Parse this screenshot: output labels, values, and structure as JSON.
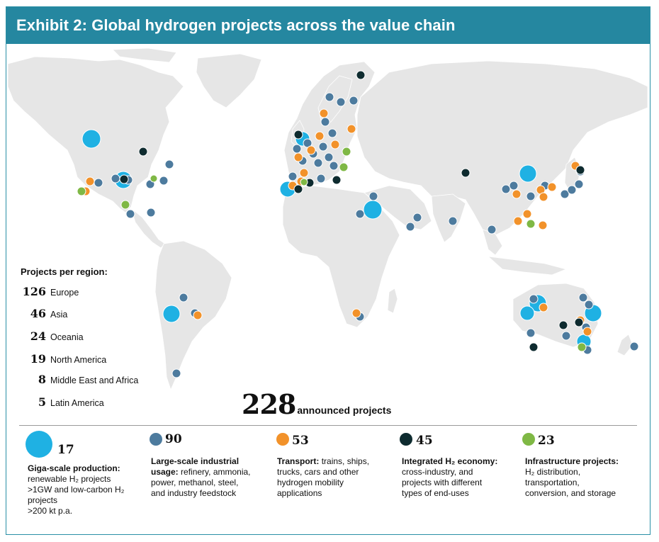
{
  "title": "Exhibit 2: Global hydrogen projects across the value chain",
  "region_panel": {
    "heading": "Projects per region:",
    "regions": [
      {
        "count": "126",
        "name": "Europe"
      },
      {
        "count": "46",
        "name": "Asia"
      },
      {
        "count": "24",
        "name": "Oceania"
      },
      {
        "count": "19",
        "name": "North America"
      },
      {
        "count": "8",
        "name": "Middle East and Africa"
      },
      {
        "count": "5",
        "name": "Latin America"
      }
    ]
  },
  "total": {
    "number": "228",
    "label": "announced projects"
  },
  "colors": {
    "header": "#2587a0",
    "giga": "#1fb1e3",
    "industrial": "#4d7b9e",
    "transport": "#f2922a",
    "integrated": "#0e2b2f",
    "infrastructure": "#7fb845",
    "land": "#e6e6e6",
    "border": "#ffffff"
  },
  "legend": [
    {
      "key": "giga",
      "count": "17",
      "title": "Giga-scale production:",
      "lines": [
        "renewable H₂ projects",
        ">1GW and low-carbon H₂",
        "projects",
        ">200 kt p.a."
      ]
    },
    {
      "key": "industrial",
      "count": "90",
      "title": "Large-scale industrial",
      "title2": "usage:",
      "lines": [
        "refinery, ammonia,",
        "power, methanol, steel,",
        "and industry feedstock"
      ],
      "first_suffix": " refinery, ammonia,"
    },
    {
      "key": "transport",
      "count": "53",
      "title": "Transport:",
      "lines": [
        "trains, ships,",
        "trucks, cars and other",
        "hydrogen mobility",
        "applications"
      ]
    },
    {
      "key": "integrated",
      "count": "45",
      "title": "Integrated H₂ economy:",
      "lines": [
        "cross-industry, and",
        "projects with different",
        "types of end-uses"
      ]
    },
    {
      "key": "infrastructure",
      "count": "23",
      "title": "Infrastructure projects:",
      "lines": [
        "H₂ distribution,",
        "transportation,",
        "conversion, and storage"
      ]
    }
  ]
}
